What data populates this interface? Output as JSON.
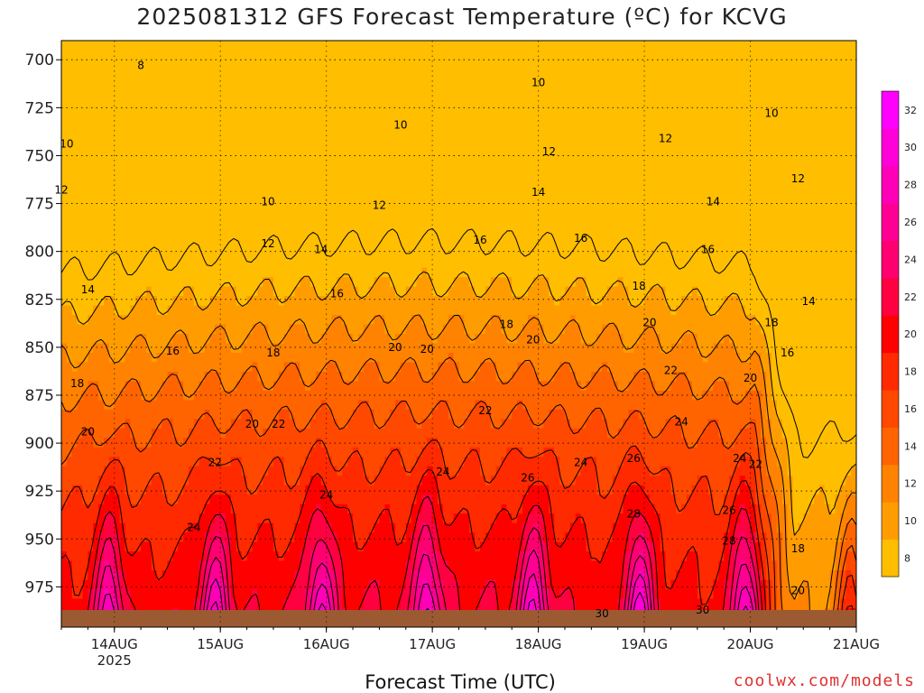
{
  "title": "2025081312 GFS Forecast Temperature (ºC) for KCVG",
  "xlabel": "Forecast Time (UTC)",
  "credit": "coolwx.com/models",
  "chart_data": {
    "type": "heatmap",
    "title": "2025081312 GFS Forecast Temperature (ºC) for KCVG",
    "xlabel": "Forecast Time (UTC)",
    "ylabel": "",
    "x_range_days": [
      13.5,
      21.0
    ],
    "y_range_hPa": [
      690,
      996
    ],
    "y_ticks": [
      700,
      725,
      750,
      775,
      800,
      825,
      850,
      875,
      900,
      925,
      950,
      975
    ],
    "x_ticks": [
      {
        "day": 14,
        "label": "14AUG",
        "sublabel": "2025"
      },
      {
        "day": 15,
        "label": "15AUG",
        "sublabel": ""
      },
      {
        "day": 16,
        "label": "16AUG",
        "sublabel": ""
      },
      {
        "day": 17,
        "label": "17AUG",
        "sublabel": ""
      },
      {
        "day": 18,
        "label": "18AUG",
        "sublabel": ""
      },
      {
        "day": 19,
        "label": "19AUG",
        "sublabel": ""
      },
      {
        "day": 20,
        "label": "20AUG",
        "sublabel": ""
      },
      {
        "day": 21,
        "label": "21AUG",
        "sublabel": ""
      }
    ],
    "grid": true,
    "contour_interval_C": 2,
    "colorbar": {
      "levels": [
        8,
        10,
        12,
        14,
        16,
        18,
        20,
        22,
        24,
        26,
        28,
        30,
        32
      ],
      "colors": [
        "#ffbe00",
        "#ff9d00",
        "#ff8200",
        "#ff6400",
        "#ff4800",
        "#ff2a00",
        "#ff0000",
        "#ff0040",
        "#ff0070",
        "#ff0095",
        "#ff00b8",
        "#ff00d8",
        "#ff00ff"
      ]
    },
    "contour_labels": [
      {
        "day": 14.25,
        "p": 703,
        "v": 8
      },
      {
        "day": 18.0,
        "p": 712,
        "v": 10
      },
      {
        "day": 20.2,
        "p": 728,
        "v": 10
      },
      {
        "day": 13.55,
        "p": 744,
        "v": 10
      },
      {
        "day": 15.45,
        "p": 774,
        "v": 10
      },
      {
        "day": 16.7,
        "p": 734,
        "v": 10
      },
      {
        "day": 18.1,
        "p": 748,
        "v": 12
      },
      {
        "day": 19.2,
        "p": 741,
        "v": 12
      },
      {
        "day": 20.45,
        "p": 762,
        "v": 12
      },
      {
        "day": 13.5,
        "p": 768,
        "v": 12
      },
      {
        "day": 15.45,
        "p": 796,
        "v": 12
      },
      {
        "day": 16.5,
        "p": 776,
        "v": 12
      },
      {
        "day": 18.0,
        "p": 769,
        "v": 14
      },
      {
        "day": 19.65,
        "p": 774,
        "v": 14
      },
      {
        "day": 13.75,
        "p": 820,
        "v": 14
      },
      {
        "day": 15.95,
        "p": 799,
        "v": 14
      },
      {
        "day": 20.55,
        "p": 826,
        "v": 14
      },
      {
        "day": 17.45,
        "p": 794,
        "v": 16
      },
      {
        "day": 18.4,
        "p": 793,
        "v": 16
      },
      {
        "day": 19.6,
        "p": 799,
        "v": 16
      },
      {
        "day": 16.1,
        "p": 822,
        "v": 16
      },
      {
        "day": 14.55,
        "p": 852,
        "v": 16
      },
      {
        "day": 20.35,
        "p": 853,
        "v": 16
      },
      {
        "day": 18.95,
        "p": 818,
        "v": 18
      },
      {
        "day": 17.7,
        "p": 838,
        "v": 18
      },
      {
        "day": 15.5,
        "p": 853,
        "v": 18
      },
      {
        "day": 13.65,
        "p": 869,
        "v": 18
      },
      {
        "day": 20.2,
        "p": 837,
        "v": 18
      },
      {
        "day": 16.65,
        "p": 850,
        "v": 20
      },
      {
        "day": 16.95,
        "p": 851,
        "v": 20
      },
      {
        "day": 17.95,
        "p": 846,
        "v": 20
      },
      {
        "day": 19.05,
        "p": 837,
        "v": 20
      },
      {
        "day": 15.3,
        "p": 890,
        "v": 20
      },
      {
        "day": 13.75,
        "p": 894,
        "v": 20
      },
      {
        "day": 20.0,
        "p": 866,
        "v": 20
      },
      {
        "day": 19.25,
        "p": 862,
        "v": 22
      },
      {
        "day": 15.55,
        "p": 890,
        "v": 22
      },
      {
        "day": 17.5,
        "p": 883,
        "v": 22
      },
      {
        "day": 14.95,
        "p": 910,
        "v": 22
      },
      {
        "day": 20.05,
        "p": 911,
        "v": 22
      },
      {
        "day": 19.35,
        "p": 889,
        "v": 24
      },
      {
        "day": 17.1,
        "p": 915,
        "v": 24
      },
      {
        "day": 18.4,
        "p": 910,
        "v": 24
      },
      {
        "day": 16.0,
        "p": 927,
        "v": 24
      },
      {
        "day": 14.75,
        "p": 944,
        "v": 24
      },
      {
        "day": 19.9,
        "p": 908,
        "v": 24
      },
      {
        "day": 18.9,
        "p": 908,
        "v": 26
      },
      {
        "day": 17.9,
        "p": 918,
        "v": 26
      },
      {
        "day": 19.8,
        "p": 935,
        "v": 26
      },
      {
        "day": 18.9,
        "p": 937,
        "v": 28
      },
      {
        "day": 19.8,
        "p": 951,
        "v": 28
      },
      {
        "day": 18.6,
        "p": 989,
        "v": 30
      },
      {
        "day": 19.55,
        "p": 987,
        "v": 30
      },
      {
        "day": 20.45,
        "p": 955,
        "v": 18
      },
      {
        "day": 20.45,
        "p": 977,
        "v": 20
      }
    ]
  }
}
